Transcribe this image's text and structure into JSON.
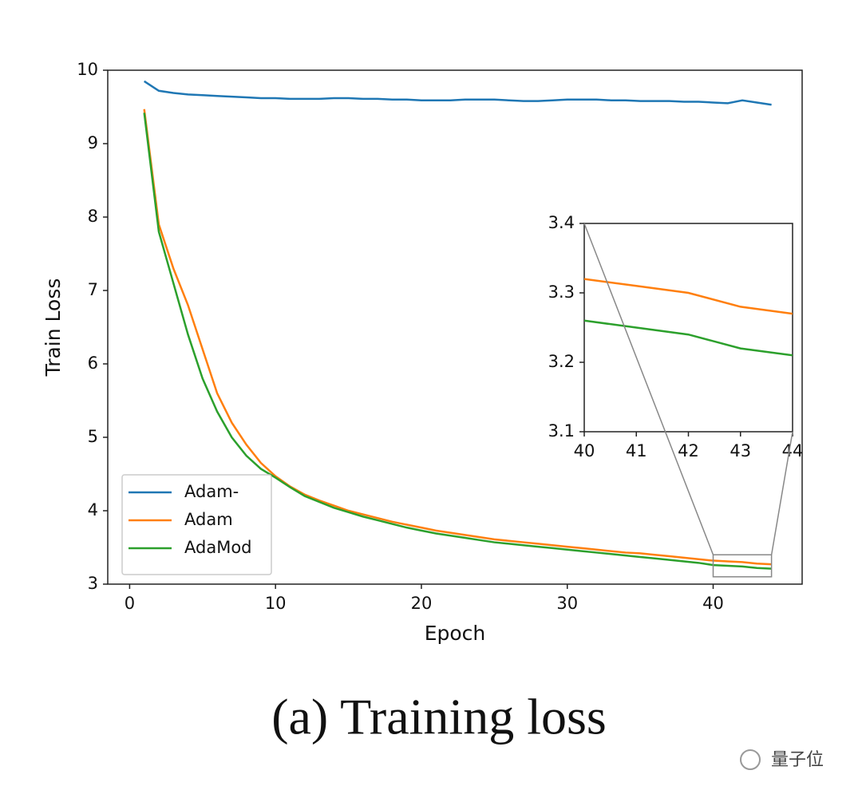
{
  "chart_data": [
    {
      "type": "line",
      "x_label": "Epoch",
      "y_label": "Train Loss",
      "x": [
        1,
        2,
        3,
        4,
        5,
        6,
        7,
        8,
        9,
        10,
        11,
        12,
        13,
        14,
        15,
        16,
        17,
        18,
        19,
        20,
        21,
        22,
        23,
        24,
        25,
        26,
        27,
        28,
        29,
        30,
        31,
        32,
        33,
        34,
        35,
        36,
        37,
        38,
        39,
        40,
        41,
        42,
        43,
        44
      ],
      "series": [
        {
          "name": "Adam-",
          "color": "#1f77b4",
          "values": [
            9.85,
            9.72,
            9.69,
            9.67,
            9.66,
            9.65,
            9.64,
            9.63,
            9.62,
            9.62,
            9.61,
            9.61,
            9.61,
            9.62,
            9.62,
            9.61,
            9.61,
            9.6,
            9.6,
            9.59,
            9.59,
            9.59,
            9.6,
            9.6,
            9.6,
            9.59,
            9.58,
            9.58,
            9.59,
            9.6,
            9.6,
            9.6,
            9.59,
            9.59,
            9.58,
            9.58,
            9.58,
            9.57,
            9.57,
            9.56,
            9.55,
            9.59,
            9.56,
            9.53
          ]
        },
        {
          "name": "Adam",
          "color": "#ff7f0e",
          "values": [
            9.47,
            7.9,
            7.3,
            6.8,
            6.2,
            5.6,
            5.2,
            4.9,
            4.65,
            4.47,
            4.33,
            4.22,
            4.14,
            4.07,
            4.0,
            3.95,
            3.9,
            3.85,
            3.81,
            3.77,
            3.73,
            3.7,
            3.67,
            3.64,
            3.61,
            3.59,
            3.57,
            3.55,
            3.53,
            3.51,
            3.49,
            3.47,
            3.45,
            3.43,
            3.42,
            3.4,
            3.38,
            3.36,
            3.34,
            3.32,
            3.31,
            3.3,
            3.28,
            3.27
          ]
        },
        {
          "name": "AdaMod",
          "color": "#2ca02c",
          "values": [
            9.42,
            7.8,
            7.1,
            6.4,
            5.8,
            5.35,
            5.0,
            4.75,
            4.57,
            4.45,
            4.32,
            4.2,
            4.12,
            4.04,
            3.98,
            3.92,
            3.87,
            3.82,
            3.77,
            3.73,
            3.69,
            3.66,
            3.63,
            3.6,
            3.57,
            3.55,
            3.53,
            3.51,
            3.49,
            3.47,
            3.45,
            3.43,
            3.41,
            3.39,
            3.37,
            3.35,
            3.33,
            3.31,
            3.29,
            3.26,
            3.25,
            3.24,
            3.22,
            3.21
          ]
        }
      ],
      "xlim": [
        -1.5,
        46.1
      ],
      "xticks": [
        0,
        10,
        20,
        30,
        40
      ],
      "ylim": [
        3,
        10
      ],
      "yticks": [
        3,
        4,
        5,
        6,
        7,
        8,
        9,
        10
      ],
      "legend": "lower left"
    },
    {
      "type": "line",
      "x": [
        40,
        41,
        42,
        43,
        44
      ],
      "series": [
        {
          "color": "#ff7f0e",
          "values": [
            3.32,
            3.31,
            3.3,
            3.28,
            3.27
          ]
        },
        {
          "color": "#2ca02c",
          "values": [
            3.26,
            3.25,
            3.24,
            3.22,
            3.21
          ]
        }
      ],
      "xlim": [
        40,
        44
      ],
      "xticks": [
        40,
        41,
        42,
        43,
        44
      ],
      "ylim": [
        3.1,
        3.4
      ],
      "yticks": [
        3.1,
        3.2,
        3.3,
        3.4
      ]
    }
  ],
  "caption": "(a) Training loss",
  "watermark": "量子位"
}
